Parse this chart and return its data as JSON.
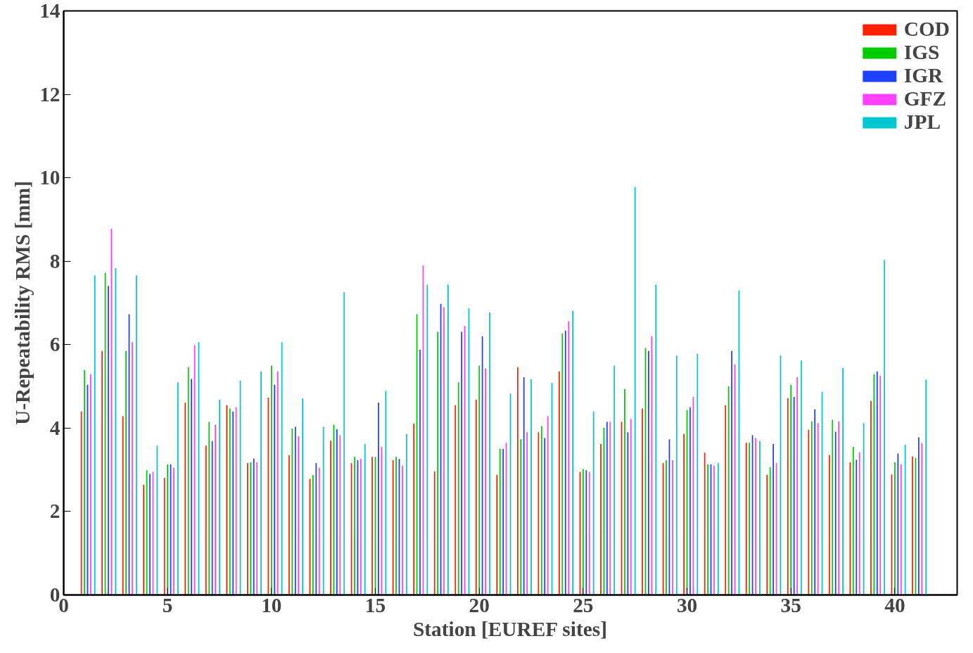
{
  "chart_data": {
    "type": "bar",
    "xlabel": "Station [EUREF sites]",
    "ylabel": "U-Repeatability RMS [mm]",
    "x": [
      1,
      2,
      3,
      4,
      5,
      6,
      7,
      8,
      9,
      10,
      11,
      12,
      13,
      14,
      15,
      16,
      17,
      18,
      19,
      20,
      21,
      22,
      23,
      24,
      25,
      26,
      27,
      28,
      29,
      30,
      31,
      32,
      33,
      34,
      35,
      36,
      37,
      38,
      39,
      40,
      41
    ],
    "xlim": [
      0,
      43
    ],
    "xticks": [
      0,
      5,
      10,
      15,
      20,
      25,
      30,
      35,
      40
    ],
    "ylim": [
      0,
      14
    ],
    "yticks": [
      0,
      2,
      4,
      6,
      8,
      10,
      12,
      14
    ],
    "grid": false,
    "legend": "top right",
    "series": [
      {
        "name": "COD",
        "color": "#ff2000",
        "values": [
          4.4,
          5.85,
          4.29,
          2.64,
          2.81,
          4.61,
          3.58,
          4.55,
          3.16,
          4.73,
          3.35,
          2.78,
          3.7,
          3.16,
          3.31,
          3.23,
          4.11,
          2.96,
          4.55,
          4.68,
          2.88,
          5.46,
          3.9,
          5.36,
          2.95,
          3.62,
          4.15,
          4.47,
          3.16,
          3.86,
          3.41,
          4.55,
          3.65,
          2.88,
          4.72,
          3.96,
          3.35,
          3.18,
          4.65,
          2.89,
          3.32
        ]
      },
      {
        "name": "IGS",
        "color": "#00cc00",
        "values": [
          5.39,
          7.72,
          5.85,
          2.99,
          3.13,
          5.46,
          4.15,
          4.47,
          3.18,
          5.5,
          3.99,
          2.87,
          4.08,
          3.31,
          3.31,
          3.31,
          6.73,
          6.31,
          5.1,
          5.5,
          3.5,
          3.73,
          4.05,
          6.27,
          3.02,
          4.01,
          4.94,
          5.92,
          3.23,
          4.43,
          3.13,
          5.0,
          3.65,
          3.06,
          5.04,
          4.16,
          4.2,
          3.55,
          5.29,
          3.18,
          3.28
        ]
      },
      {
        "name": "IGR",
        "color": "#2040ff",
        "values": [
          5.04,
          7.41,
          6.73,
          2.9,
          3.13,
          5.18,
          3.69,
          4.4,
          3.27,
          5.04,
          4.03,
          3.16,
          3.97,
          3.23,
          4.61,
          3.26,
          5.88,
          6.98,
          6.31,
          6.2,
          3.5,
          5.22,
          3.76,
          6.34,
          2.99,
          4.15,
          3.9,
          5.85,
          3.73,
          4.5,
          3.13,
          5.85,
          3.83,
          3.62,
          4.75,
          4.45,
          3.91,
          3.24,
          5.36,
          3.39,
          3.78
        ]
      },
      {
        "name": "GFZ",
        "color": "#ff40ff",
        "values": [
          5.29,
          8.78,
          6.06,
          2.95,
          3.05,
          5.99,
          4.08,
          4.5,
          3.18,
          5.36,
          3.8,
          3.05,
          3.83,
          3.26,
          3.55,
          3.1,
          7.9,
          6.9,
          6.45,
          5.43,
          3.65,
          3.9,
          4.29,
          6.56,
          2.95,
          4.15,
          4.22,
          6.2,
          3.23,
          4.75,
          3.1,
          5.53,
          3.76,
          3.16,
          5.22,
          4.12,
          4.16,
          3.42,
          5.26,
          3.13,
          3.64
        ]
      },
      {
        "name": "JPL",
        "color": "#00c8d0",
        "values": [
          7.66,
          7.83,
          7.66,
          3.58,
          5.1,
          6.06,
          4.68,
          5.14,
          5.36,
          6.06,
          4.71,
          4.03,
          7.26,
          3.62,
          4.89,
          3.86,
          7.44,
          7.44,
          6.87,
          6.77,
          4.83,
          5.17,
          5.08,
          6.81,
          4.4,
          5.5,
          9.78,
          7.44,
          5.74,
          5.78,
          3.16,
          7.3,
          3.69,
          5.74,
          5.62,
          4.87,
          5.44,
          4.12,
          8.03,
          3.6,
          5.16
        ]
      }
    ]
  }
}
